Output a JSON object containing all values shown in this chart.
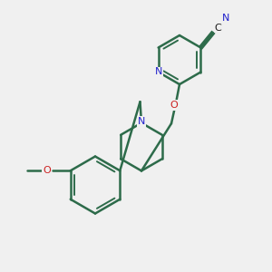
{
  "background_color": "#f0f0f0",
  "bond_color": "#2d6b4a",
  "atom_colors": {
    "N": "#2020cc",
    "O": "#cc2020",
    "C": "#1a1a1a"
  },
  "figsize": [
    3.0,
    3.0
  ],
  "dpi": 100
}
